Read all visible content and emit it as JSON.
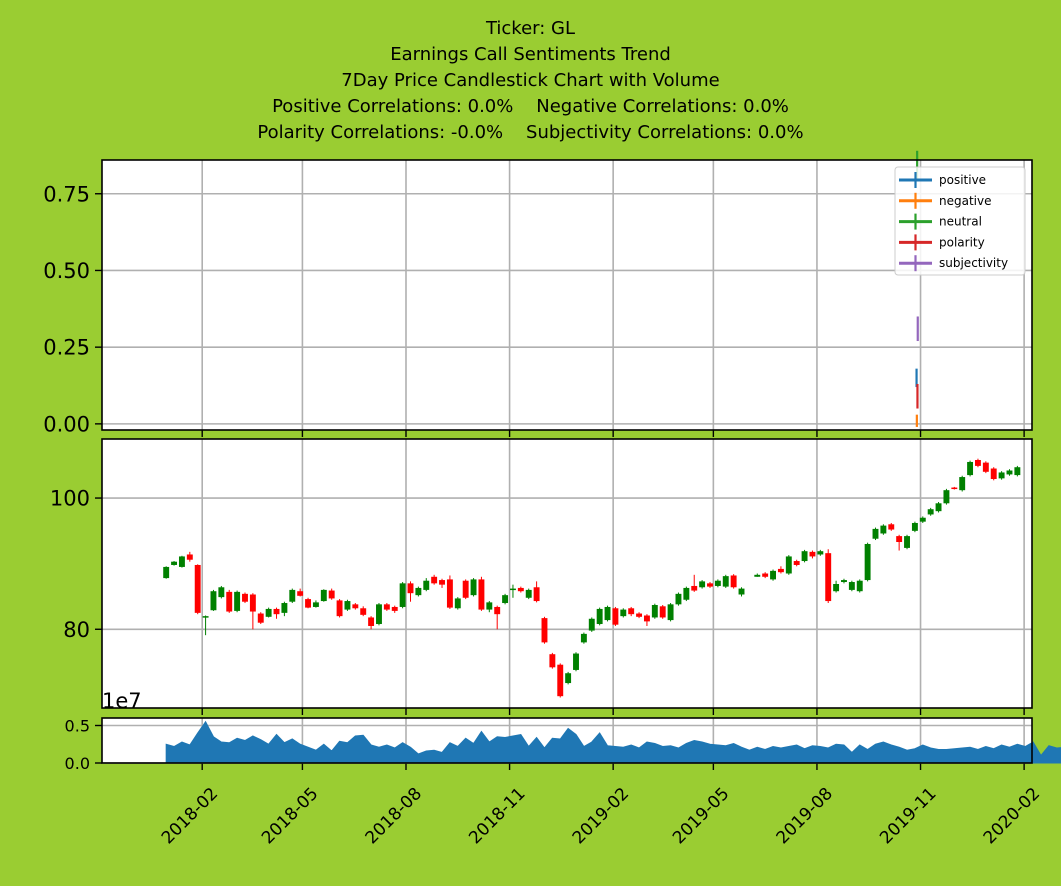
{
  "title_lines": [
    "Ticker: GL",
    "Earnings Call Sentiments Trend",
    "7Day Price Candlestick Chart with Volume",
    "Positive Correlations: 0.0%    Negative Correlations: 0.0%",
    "Polarity Correlations: -0.0%    Subjectivity Correlations: 0.0%"
  ],
  "chart_data": [
    {
      "type": "line",
      "panel": "sentiment",
      "legend": {
        "placement": "top-right",
        "entries": [
          "positive",
          "negative",
          "neutral",
          "polarity",
          "subjectivity"
        ]
      },
      "colors": {
        "positive": "#1f77b4",
        "negative": "#ff7f0e",
        "neutral": "#2ca02c",
        "polarity": "#d62728",
        "subjectivity": "#9467bd"
      },
      "grid": true,
      "ylim": [
        -0.02,
        0.86
      ],
      "yticks": [
        "0.00",
        "0.25",
        "0.50",
        "0.75"
      ],
      "series": [
        {
          "name": "positive",
          "date": "2019-10-29",
          "value": 0.15,
          "error": 0.03
        },
        {
          "name": "negative",
          "date": "2019-10-29",
          "value": 0.01,
          "error": 0.02
        },
        {
          "name": "neutral",
          "date": "2019-10-29",
          "value": 0.84,
          "error": 0.05
        },
        {
          "name": "polarity",
          "date": "2019-10-29",
          "value": 0.09,
          "error": 0.04
        },
        {
          "name": "subjectivity",
          "date": "2019-10-29",
          "value": 0.31,
          "error": 0.04
        }
      ]
    },
    {
      "type": "candlestick",
      "panel": "price",
      "grid": true,
      "ylim": [
        68,
        109
      ],
      "yticks": [
        "80",
        "100"
      ],
      "up_color": "#008000",
      "down_color": "#ff0000",
      "candles": [
        [
          "2017-12-31",
          87.8,
          89.5,
          87.7,
          89.6
        ],
        [
          "2018-01-07",
          89.8,
          90.3,
          89.7,
          90.4
        ],
        [
          "2018-01-14",
          89.5,
          91.1,
          89.4,
          91.2
        ],
        [
          "2018-01-21",
          91.4,
          90.6,
          90.3,
          91.8
        ],
        [
          "2018-01-28",
          89.8,
          82.5,
          82.3,
          89.9
        ],
        [
          "2018-02-04",
          81.8,
          82.0,
          79.1,
          82.1
        ],
        [
          "2018-02-11",
          82.9,
          85.8,
          82.8,
          86.0
        ],
        [
          "2018-02-18",
          84.9,
          86.4,
          84.7,
          86.6
        ],
        [
          "2018-02-25",
          85.7,
          82.7,
          82.5,
          86.0
        ],
        [
          "2018-03-04",
          82.8,
          85.7,
          82.6,
          85.9
        ],
        [
          "2018-03-11",
          85.4,
          84.2,
          84.0,
          85.6
        ],
        [
          "2018-03-18",
          85.3,
          82.7,
          80.0,
          85.5
        ],
        [
          "2018-03-25",
          82.4,
          81.0,
          80.8,
          82.6
        ],
        [
          "2018-04-01",
          81.9,
          83.1,
          81.8,
          83.3
        ],
        [
          "2018-04-08",
          83.1,
          82.3,
          81.6,
          83.3
        ],
        [
          "2018-04-15",
          82.5,
          84.0,
          82.0,
          84.2
        ],
        [
          "2018-04-22",
          84.2,
          86.0,
          84.0,
          86.2
        ],
        [
          "2018-04-29",
          85.8,
          85.1,
          85.0,
          86.2
        ],
        [
          "2018-05-06",
          84.6,
          83.3,
          83.2,
          84.8
        ],
        [
          "2018-05-13",
          83.4,
          84.1,
          83.3,
          84.4
        ],
        [
          "2018-05-20",
          84.3,
          86.0,
          84.2,
          86.1
        ],
        [
          "2018-05-27",
          85.9,
          84.7,
          84.5,
          86.2
        ],
        [
          "2018-06-03",
          84.4,
          82.0,
          81.8,
          84.6
        ],
        [
          "2018-06-10",
          83.0,
          84.3,
          82.8,
          84.5
        ],
        [
          "2018-06-17",
          83.8,
          83.2,
          83.0,
          84.0
        ],
        [
          "2018-06-24",
          83.2,
          82.2,
          82.0,
          83.5
        ],
        [
          "2018-07-01",
          81.8,
          80.5,
          80.0,
          82.0
        ],
        [
          "2018-07-08",
          80.8,
          83.8,
          80.6,
          84.0
        ],
        [
          "2018-07-15",
          83.8,
          83.0,
          82.8,
          84.0
        ],
        [
          "2018-07-22",
          83.4,
          82.8,
          82.5,
          83.6
        ],
        [
          "2018-07-29",
          83.4,
          87.0,
          83.2,
          87.2
        ],
        [
          "2018-08-05",
          87.0,
          85.5,
          84.2,
          87.3
        ],
        [
          "2018-08-12",
          85.2,
          86.3,
          85.0,
          86.5
        ],
        [
          "2018-08-19",
          86.0,
          87.4,
          85.8,
          87.8
        ],
        [
          "2018-08-26",
          88.0,
          87.0,
          86.8,
          88.3
        ],
        [
          "2018-09-02",
          87.5,
          86.8,
          86.3,
          87.7
        ],
        [
          "2018-09-09",
          87.6,
          83.3,
          83.1,
          88.2
        ],
        [
          "2018-09-16",
          83.2,
          84.7,
          83.0,
          84.9
        ],
        [
          "2018-09-23",
          87.4,
          84.8,
          84.6,
          87.6
        ],
        [
          "2018-09-30",
          85.2,
          87.6,
          85.0,
          87.8
        ],
        [
          "2018-10-07",
          87.6,
          83.0,
          82.8,
          88.0
        ],
        [
          "2018-10-14",
          83.0,
          84.1,
          82.6,
          84.3
        ],
        [
          "2018-10-21",
          83.4,
          82.3,
          80.0,
          83.6
        ],
        [
          "2018-10-28",
          84.0,
          85.2,
          83.8,
          85.4
        ],
        [
          "2018-11-04",
          86.2,
          86.2,
          84.8,
          86.8
        ],
        [
          "2018-11-11",
          86.3,
          85.8,
          85.6,
          86.5
        ],
        [
          "2018-11-18",
          84.8,
          86.0,
          84.6,
          86.2
        ],
        [
          "2018-11-25",
          86.4,
          84.3,
          84.1,
          87.3
        ],
        [
          "2018-12-02",
          81.7,
          78.0,
          77.8,
          81.9
        ],
        [
          "2018-12-09",
          76.2,
          74.2,
          74.0,
          76.4
        ],
        [
          "2018-12-16",
          74.6,
          69.8,
          69.6,
          74.8
        ],
        [
          "2018-12-23",
          71.8,
          73.3,
          71.6,
          73.5
        ],
        [
          "2018-12-30",
          73.8,
          76.3,
          73.6,
          76.5
        ],
        [
          "2019-01-06",
          78.0,
          79.3,
          77.8,
          79.5
        ],
        [
          "2019-01-13",
          79.8,
          81.6,
          79.6,
          81.8
        ],
        [
          "2019-01-20",
          80.8,
          83.1,
          80.6,
          83.3
        ],
        [
          "2019-01-27",
          81.4,
          83.4,
          81.2,
          83.6
        ],
        [
          "2019-02-03",
          83.2,
          80.7,
          80.5,
          83.4
        ],
        [
          "2019-02-10",
          82.0,
          83.0,
          81.8,
          83.2
        ],
        [
          "2019-02-17",
          83.2,
          82.3,
          82.0,
          83.4
        ],
        [
          "2019-02-24",
          82.4,
          81.9,
          81.7,
          82.6
        ],
        [
          "2019-03-03",
          82.1,
          81.2,
          80.5,
          82.3
        ],
        [
          "2019-03-10",
          81.8,
          83.7,
          81.6,
          83.9
        ],
        [
          "2019-03-17",
          83.5,
          81.8,
          81.6,
          83.7
        ],
        [
          "2019-03-24",
          81.4,
          83.8,
          81.2,
          84.0
        ],
        [
          "2019-03-31",
          83.8,
          85.4,
          83.6,
          85.6
        ],
        [
          "2019-04-07",
          84.5,
          86.3,
          84.3,
          86.5
        ],
        [
          "2019-04-14",
          86.6,
          85.9,
          85.7,
          88.3
        ],
        [
          "2019-04-21",
          86.4,
          87.3,
          86.2,
          87.5
        ],
        [
          "2019-04-28",
          87.0,
          86.5,
          86.3,
          87.2
        ],
        [
          "2019-05-05",
          86.6,
          87.4,
          86.4,
          87.6
        ],
        [
          "2019-05-12",
          86.5,
          88.1,
          86.3,
          88.3
        ],
        [
          "2019-05-19",
          88.2,
          86.4,
          86.2,
          88.4
        ],
        [
          "2019-05-26",
          85.3,
          86.2,
          85.0,
          86.4
        ],
        [
          "2019-06-09",
          88.0,
          88.3,
          88.0,
          88.5
        ],
        [
          "2019-06-16",
          88.5,
          88.0,
          87.8,
          88.7
        ],
        [
          "2019-06-23",
          87.6,
          88.9,
          87.4,
          89.1
        ],
        [
          "2019-06-30",
          89.2,
          88.7,
          88.5,
          89.6
        ],
        [
          "2019-07-07",
          88.5,
          91.1,
          88.3,
          91.3
        ],
        [
          "2019-07-14",
          90.4,
          89.8,
          89.6,
          90.6
        ],
        [
          "2019-07-21",
          90.4,
          91.9,
          90.2,
          92.1
        ],
        [
          "2019-07-28",
          91.8,
          91.1,
          90.8,
          92.0
        ],
        [
          "2019-08-04",
          91.4,
          91.9,
          91.2,
          92.1
        ],
        [
          "2019-08-11",
          91.6,
          84.3,
          84.0,
          92.2
        ],
        [
          "2019-08-18",
          85.8,
          86.9,
          85.6,
          87.4
        ],
        [
          "2019-08-25",
          87.2,
          87.5,
          87.0,
          87.7
        ],
        [
          "2019-09-01",
          86.0,
          87.2,
          85.8,
          87.4
        ],
        [
          "2019-09-08",
          85.8,
          87.4,
          85.6,
          87.6
        ],
        [
          "2019-09-15",
          87.5,
          93.0,
          87.3,
          93.2
        ],
        [
          "2019-09-22",
          93.8,
          95.3,
          93.6,
          95.5
        ],
        [
          "2019-09-29",
          94.6,
          95.8,
          94.4,
          96.0
        ],
        [
          "2019-10-06",
          96.0,
          95.2,
          95.0,
          96.2
        ],
        [
          "2019-10-13",
          94.2,
          93.3,
          92.0,
          94.4
        ],
        [
          "2019-10-20",
          92.4,
          94.2,
          92.2,
          94.4
        ],
        [
          "2019-10-27",
          95.0,
          96.2,
          94.8,
          96.4
        ],
        [
          "2019-11-03",
          96.4,
          97.0,
          96.2,
          97.2
        ],
        [
          "2019-11-10",
          97.5,
          98.3,
          97.3,
          98.5
        ],
        [
          "2019-11-17",
          98.0,
          99.2,
          97.8,
          99.4
        ],
        [
          "2019-11-24",
          99.2,
          101.2,
          99.0,
          101.4
        ],
        [
          "2019-12-01",
          101.6,
          101.5,
          101.3,
          101.7
        ],
        [
          "2019-12-08",
          101.2,
          103.2,
          101.0,
          103.4
        ],
        [
          "2019-12-15",
          103.5,
          105.5,
          103.3,
          105.7
        ],
        [
          "2019-12-22",
          105.8,
          104.9,
          104.7,
          106.0
        ],
        [
          "2019-12-29",
          105.4,
          104.0,
          103.8,
          105.6
        ],
        [
          "2020-01-05",
          104.5,
          102.9,
          102.7,
          104.7
        ],
        [
          "2020-01-12",
          103.0,
          103.9,
          102.8,
          104.1
        ],
        [
          "2020-01-19",
          103.6,
          104.2,
          103.4,
          104.4
        ],
        [
          "2020-01-26",
          103.5,
          104.7,
          103.3,
          104.9
        ]
      ]
    },
    {
      "type": "area",
      "panel": "volume",
      "grid": true,
      "ylabel_multiplier": "1e7",
      "ylim": [
        0,
        0.6
      ],
      "yticks": [
        "0.0",
        "0.5"
      ],
      "color": "#1f77b4",
      "x_start": "2017-12-31",
      "x_step_days": 7,
      "values": [
        0.25,
        0.22,
        0.28,
        0.24,
        0.4,
        0.55,
        0.35,
        0.28,
        0.27,
        0.33,
        0.3,
        0.36,
        0.31,
        0.25,
        0.38,
        0.27,
        0.32,
        0.25,
        0.21,
        0.17,
        0.25,
        0.16,
        0.29,
        0.27,
        0.36,
        0.37,
        0.24,
        0.21,
        0.24,
        0.2,
        0.27,
        0.21,
        0.12,
        0.16,
        0.17,
        0.14,
        0.27,
        0.22,
        0.33,
        0.26,
        0.42,
        0.28,
        0.35,
        0.34,
        0.36,
        0.38,
        0.22,
        0.34,
        0.2,
        0.33,
        0.32,
        0.46,
        0.38,
        0.22,
        0.28,
        0.4,
        0.23,
        0.22,
        0.21,
        0.24,
        0.2,
        0.28,
        0.26,
        0.22,
        0.23,
        0.2,
        0.26,
        0.3,
        0.28,
        0.25,
        0.24,
        0.23,
        0.26,
        0.21,
        0.17,
        0.21,
        0.18,
        0.22,
        0.2,
        0.22,
        0.24,
        0.19,
        0.23,
        0.22,
        0.2,
        0.25,
        0.24,
        0.14,
        0.24,
        0.18,
        0.25,
        0.28,
        0.24,
        0.21,
        0.17,
        0.19,
        0.24,
        0.2,
        0.18,
        0.18,
        0.19,
        0.2,
        0.21,
        0.18,
        0.22,
        0.19,
        0.24,
        0.21,
        0.25,
        0.22,
        0.28,
        0.1,
        0.23,
        0.2,
        0.21,
        0.14
      ]
    }
  ],
  "x_axis": {
    "ticks": [
      "2018-02",
      "2018-05",
      "2018-08",
      "2018-11",
      "2019-02",
      "2019-05",
      "2019-08",
      "2019-11",
      "2020-02"
    ],
    "tick_dates": [
      "2018-02-01",
      "2018-05-01",
      "2018-08-01",
      "2018-11-01",
      "2019-02-01",
      "2019-05-01",
      "2019-08-01",
      "2019-11-01",
      "2020-02-01"
    ],
    "range": [
      "2017-11-04",
      "2020-02-08"
    ]
  }
}
